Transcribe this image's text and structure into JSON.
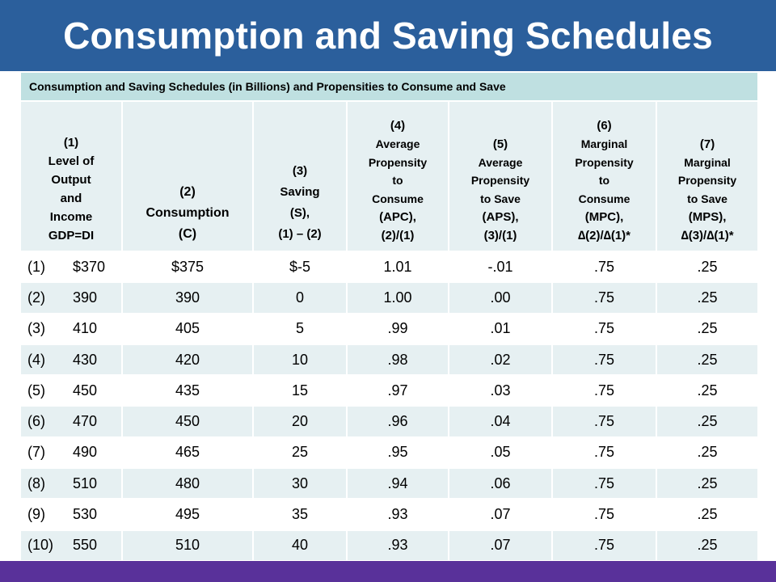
{
  "slide": {
    "title": "Consumption and Saving Schedules"
  },
  "table": {
    "caption": "Consumption and Saving Schedules (in Billions) and Propensities to Consume and Save",
    "headers": [
      [
        "(1)",
        "Level of",
        "Output",
        "and",
        "Income",
        "GDP=DI"
      ],
      [
        "(2)",
        "Consumption",
        "(C)"
      ],
      [
        "(3)",
        "Saving",
        "(S),",
        "(1) – (2)"
      ],
      [
        "(4)",
        "Average",
        "Propensity",
        "to",
        "Consume",
        "(APC),",
        "(2)/(1)"
      ],
      [
        "(5)",
        "Average",
        "Propensity",
        "to Save",
        "(APS),",
        "(3)/(1)"
      ],
      [
        "(6)",
        "Marginal",
        "Propensity",
        "to",
        "Consume",
        "(MPC),",
        "∆(2)/∆(1)*"
      ],
      [
        "(7)",
        "Marginal",
        "Propensity",
        "to Save",
        "(MPS),",
        "∆(3)/∆(1)*"
      ]
    ],
    "rows": [
      {
        "index": "(1)",
        "gdp": "$370",
        "c": "$375",
        "s": "$-5",
        "apc": "1.01",
        "aps": "-.01",
        "mpc": ".75",
        "mps": ".25"
      },
      {
        "index": "(2)",
        "gdp": "390",
        "c": "390",
        "s": "0",
        "apc": "1.00",
        "aps": ".00",
        "mpc": ".75",
        "mps": ".25"
      },
      {
        "index": "(3)",
        "gdp": "410",
        "c": "405",
        "s": "5",
        "apc": ".99",
        "aps": ".01",
        "mpc": ".75",
        "mps": ".25"
      },
      {
        "index": "(4)",
        "gdp": "430",
        "c": "420",
        "s": "10",
        "apc": ".98",
        "aps": ".02",
        "mpc": ".75",
        "mps": ".25"
      },
      {
        "index": "(5)",
        "gdp": "450",
        "c": "435",
        "s": "15",
        "apc": ".97",
        "aps": ".03",
        "mpc": ".75",
        "mps": ".25"
      },
      {
        "index": "(6)",
        "gdp": "470",
        "c": "450",
        "s": "20",
        "apc": ".96",
        "aps": ".04",
        "mpc": ".75",
        "mps": ".25"
      },
      {
        "index": "(7)",
        "gdp": "490",
        "c": "465",
        "s": "25",
        "apc": ".95",
        "aps": ".05",
        "mpc": ".75",
        "mps": ".25"
      },
      {
        "index": "(8)",
        "gdp": "510",
        "c": "480",
        "s": "30",
        "apc": ".94",
        "aps": ".06",
        "mpc": ".75",
        "mps": ".25"
      },
      {
        "index": "(9)",
        "gdp": "530",
        "c": "495",
        "s": "35",
        "apc": ".93",
        "aps": ".07",
        "mpc": ".75",
        "mps": ".25"
      },
      {
        "index": "(10)",
        "gdp": "550",
        "c": "510",
        "s": "40",
        "apc": ".93",
        "aps": ".07",
        "mpc": ".75",
        "mps": ".25"
      }
    ]
  },
  "colors": {
    "title_bar": "#2b5f9c",
    "caption_bg": "#bfe0e1",
    "stripe_bg": "#e6f0f2",
    "bottom_bar": "#59319a"
  }
}
